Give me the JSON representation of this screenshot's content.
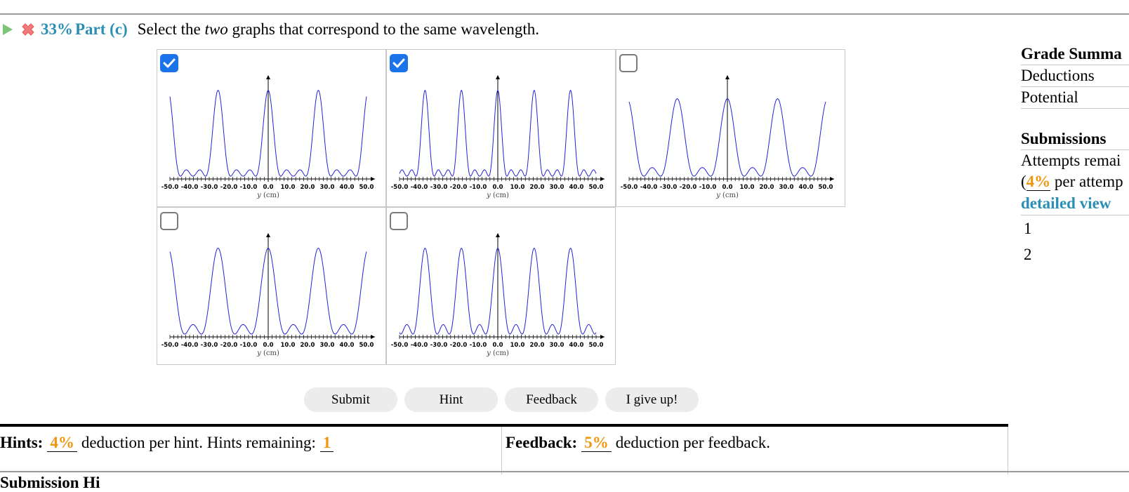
{
  "part": {
    "percent": "33%",
    "label": "Part (c)",
    "question_pre": "Select the ",
    "question_em": "two",
    "question_post": " graphs that correspond to the same wavelength."
  },
  "graphs": [
    {
      "id": "graph-1",
      "checked": true,
      "peaks": 3,
      "secondary": 2,
      "ymax": 0.92
    },
    {
      "id": "graph-2",
      "checked": true,
      "peaks": 5,
      "secondary": 2,
      "ymax": 0.92
    },
    {
      "id": "graph-3",
      "checked": false,
      "peaks": 3,
      "secondary": 1,
      "ymax": 0.82
    },
    {
      "id": "graph-4",
      "checked": false,
      "peaks": 3,
      "secondary": 1,
      "ymax": 0.92
    },
    {
      "id": "graph-5",
      "checked": false,
      "peaks": 5,
      "secondary": 1,
      "ymax": 0.92
    }
  ],
  "axis": {
    "ticks": [
      "-50.0",
      "-40.0",
      "-30.0",
      "-20.0",
      "-10.0",
      "0.0",
      "10.0",
      "20.0",
      "30.0",
      "40.0",
      "50.0"
    ],
    "xlabel_var": "y",
    "xlabel_unit": "(cm)",
    "range": [
      -50,
      50
    ]
  },
  "buttons": {
    "submit": "Submit",
    "hint": "Hint",
    "feedback": "Feedback",
    "give_up": "I give up!"
  },
  "hints": {
    "label": "Hints:",
    "deduction": "4%",
    "text": "deduction per hint. Hints remaining:",
    "remaining": "1"
  },
  "feedback": {
    "label": "Feedback:",
    "deduction": "5%",
    "text": "deduction per feedback."
  },
  "sidebar": {
    "grade_summary": "Grade Summa",
    "deductions": "Deductions",
    "potential": "Potential",
    "submissions": "Submissions",
    "attempts": "Attempts remai",
    "per_attempt_pct": "4%",
    "per_attempt_text": " per attemp",
    "detailed_view": "detailed view",
    "entries": [
      "1",
      "2"
    ]
  },
  "cut_text": "Submission Hi",
  "colors": {
    "accent": "#2a8fb3",
    "orange": "#f0960f",
    "curve": "#2323d6",
    "checkbox": "#1a73e8"
  }
}
